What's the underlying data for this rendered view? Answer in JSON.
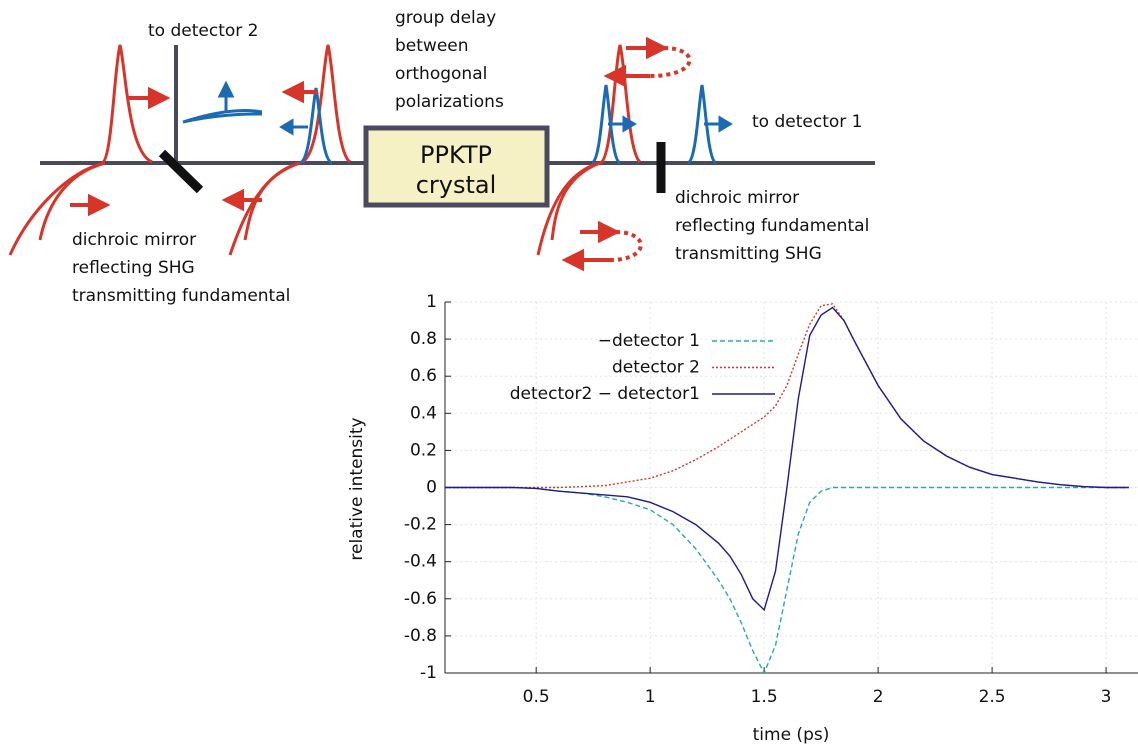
{
  "diagram": {
    "to_detector_2": "to detector 2",
    "group_delay": [
      "group delay",
      "between",
      "orthogonal",
      "polarizations"
    ],
    "crystal": [
      "PPKTP",
      "crystal"
    ],
    "to_detector_1": "to detector 1",
    "mirror_right": [
      "dichroic mirror",
      "reflecting fundamental",
      "transmitting SHG"
    ],
    "mirror_left": [
      "dichroic mirror",
      "reflecting SHG",
      "transmitting fundamental"
    ]
  },
  "chart_data": {
    "type": "line",
    "xlabel": "time (ps)",
    "ylabel": "relative intensity",
    "x": [
      0.1,
      0.2,
      0.3,
      0.4,
      0.5,
      0.6,
      0.7,
      0.8,
      0.9,
      1.0,
      1.1,
      1.2,
      1.3,
      1.35,
      1.4,
      1.45,
      1.5,
      1.55,
      1.6,
      1.65,
      1.7,
      1.75,
      1.8,
      1.85,
      1.9,
      2.0,
      2.1,
      2.2,
      2.3,
      2.4,
      2.5,
      2.6,
      2.7,
      2.8,
      2.9,
      3.0,
      3.1
    ],
    "series": [
      {
        "name": "−detector 1",
        "color": "#2aa8a8",
        "linestyle": "dashed",
        "values": [
          0,
          0,
          0,
          0,
          -0.005,
          -0.02,
          -0.03,
          -0.05,
          -0.08,
          -0.12,
          -0.2,
          -0.33,
          -0.5,
          -0.6,
          -0.73,
          -0.88,
          -1.0,
          -0.85,
          -0.55,
          -0.25,
          -0.08,
          -0.02,
          0,
          0,
          0,
          0,
          0,
          0,
          0,
          0,
          0,
          0,
          0,
          0,
          0,
          0,
          0
        ]
      },
      {
        "name": "detector 2",
        "color": "#d8352a",
        "linestyle": "dotted",
        "values": [
          0,
          0,
          0,
          0,
          0,
          0,
          0.005,
          0.01,
          0.03,
          0.05,
          0.09,
          0.15,
          0.22,
          0.26,
          0.3,
          0.34,
          0.38,
          0.44,
          0.55,
          0.72,
          0.88,
          0.98,
          0.99,
          0.9,
          0.78,
          0.55,
          0.37,
          0.25,
          0.17,
          0.11,
          0.07,
          0.05,
          0.03,
          0.015,
          0.005,
          0,
          0
        ]
      },
      {
        "name": "detector2 − detector1",
        "color": "#1c1c8c",
        "linestyle": "solid",
        "values": [
          0,
          0,
          0,
          0,
          -0.005,
          -0.02,
          -0.03,
          -0.04,
          -0.05,
          -0.08,
          -0.13,
          -0.2,
          -0.3,
          -0.37,
          -0.47,
          -0.6,
          -0.66,
          -0.45,
          0,
          0.48,
          0.82,
          0.93,
          0.97,
          0.9,
          0.78,
          0.55,
          0.37,
          0.25,
          0.17,
          0.11,
          0.07,
          0.05,
          0.03,
          0.015,
          0.005,
          0,
          0
        ]
      }
    ],
    "xlim": [
      0.1,
      3.14
    ],
    "ylim": [
      -1,
      1
    ],
    "xticks": [
      0.5,
      1,
      1.5,
      2,
      2.5,
      3
    ],
    "yticks": [
      -1,
      -0.8,
      -0.6,
      -0.4,
      -0.2,
      0,
      0.2,
      0.4,
      0.6,
      0.8,
      1
    ],
    "grid": true,
    "legend": "upper left"
  }
}
